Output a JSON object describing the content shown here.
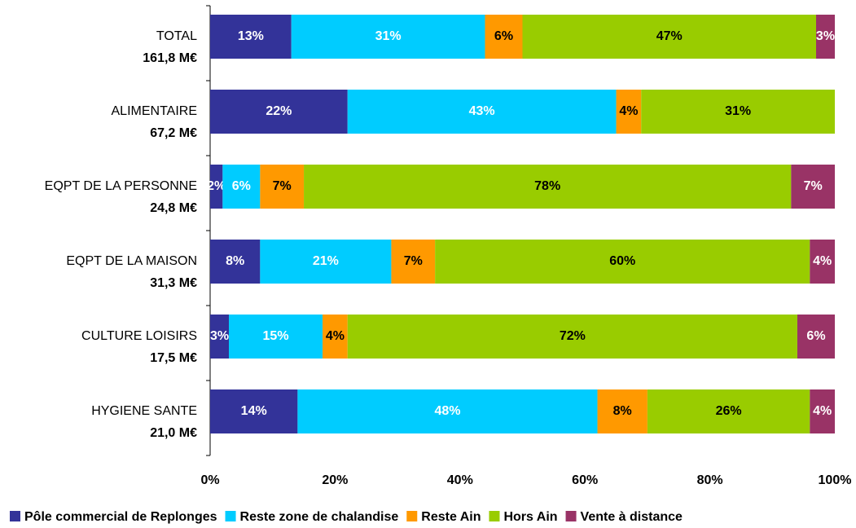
{
  "chart_data": {
    "type": "stacked_bar_horizontal",
    "categories": [
      "TOTAL",
      "ALIMENTAIRE",
      "EQPT DE LA PERSONNE",
      "EQPT DE LA MAISON",
      "CULTURE LOISIRS",
      "HYGIENE SANTE"
    ],
    "category_totals": [
      "161,8 M€",
      "67,2 M€",
      "24,8 M€",
      "31,3 M€",
      "17,5 M€",
      "21,0 M€"
    ],
    "series": [
      {
        "name": "Pôle commercial de Replonges",
        "color": "#333399",
        "label_color": "#ffffff",
        "values": [
          13,
          22,
          2,
          8,
          3,
          14
        ],
        "value_labels": [
          "13%",
          "22%",
          "2%",
          "8%",
          "3%",
          "14%"
        ]
      },
      {
        "name": "Reste zone de chalandise",
        "color": "#00ccff",
        "label_color": "#ffffff",
        "values": [
          31,
          43,
          6,
          21,
          15,
          48
        ],
        "value_labels": [
          "31%",
          "43%",
          "6%",
          "21%",
          "15%",
          "48%"
        ]
      },
      {
        "name": "Reste Ain",
        "color": "#ff9900",
        "label_color": "#000000",
        "values": [
          6,
          4,
          7,
          7,
          4,
          8
        ],
        "value_labels": [
          "6%",
          "4%",
          "7%",
          "7%",
          "4%",
          "8%"
        ]
      },
      {
        "name": "Hors Ain",
        "color": "#99cc00",
        "label_color": "#000000",
        "values": [
          47,
          31,
          78,
          60,
          72,
          26
        ],
        "value_labels": [
          "47%",
          "31%",
          "78%",
          "60%",
          "72%",
          "26%"
        ]
      },
      {
        "name": "Vente à distance",
        "color": "#993366",
        "label_color": "#ffffff",
        "values": [
          3,
          0,
          7,
          4,
          6,
          4
        ],
        "value_labels": [
          "3%",
          null,
          "7%",
          "4%",
          "6%",
          "4%"
        ]
      }
    ],
    "xlim": [
      0,
      100
    ],
    "xticks": [
      {
        "value": 0,
        "label": "0%"
      },
      {
        "value": 20,
        "label": "20%"
      },
      {
        "value": 40,
        "label": "40%"
      },
      {
        "value": 60,
        "label": "60%"
      },
      {
        "value": 80,
        "label": "80%"
      },
      {
        "value": 100,
        "label": "100%"
      }
    ],
    "legend": "bottom"
  }
}
